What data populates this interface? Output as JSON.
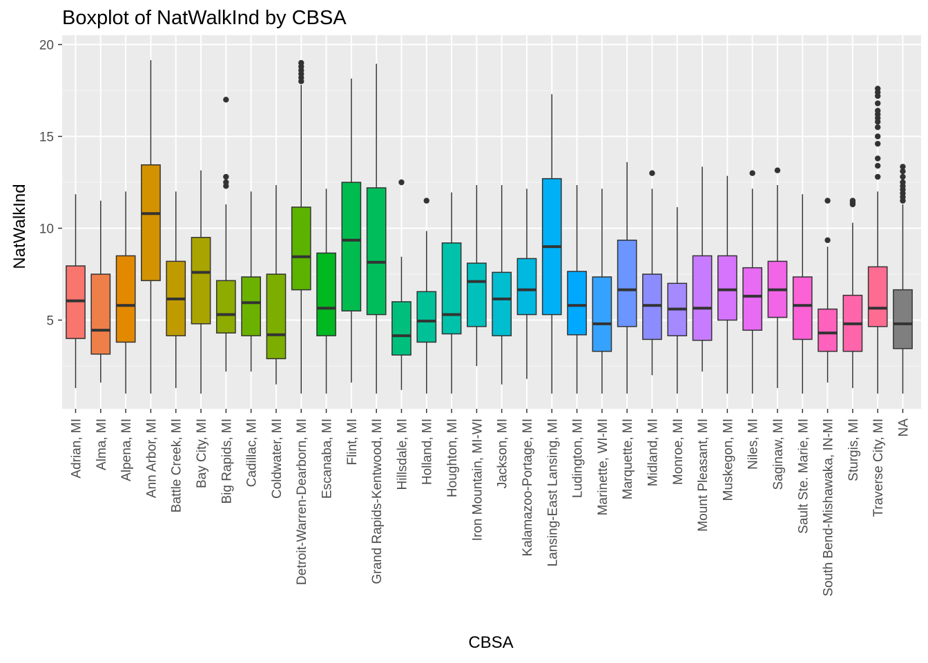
{
  "chart_data": {
    "type": "boxplot",
    "title": "Boxplot of NatWalkInd by CBSA",
    "xlabel": "CBSA",
    "ylabel": "NatWalkInd",
    "ylim": [
      0.25,
      20
    ],
    "yticks": [
      5,
      10,
      15,
      20
    ],
    "grid": true,
    "legend": "none",
    "categories": [
      {
        "name": "Adrian, MI",
        "min": 1.3,
        "q1": 4.0,
        "median": 6.05,
        "q3": 7.95,
        "max": 11.85,
        "outliers": [],
        "color": "#F8766D"
      },
      {
        "name": "Alma, MI",
        "min": 1.6,
        "q1": 3.15,
        "median": 4.45,
        "q3": 7.5,
        "max": 11.5,
        "outliers": [],
        "color": "#EF7F49"
      },
      {
        "name": "Alpena, MI",
        "min": 1.0,
        "q1": 3.8,
        "median": 5.8,
        "q3": 8.5,
        "max": 12.0,
        "outliers": [],
        "color": "#E38900"
      },
      {
        "name": "Ann Arbor, MI",
        "min": 1.0,
        "q1": 7.15,
        "median": 10.8,
        "q3": 13.45,
        "max": 19.15,
        "outliers": [],
        "color": "#D39200"
      },
      {
        "name": "Battle Creek, MI",
        "min": 1.3,
        "q1": 4.15,
        "median": 6.15,
        "q3": 8.2,
        "max": 12.0,
        "outliers": [],
        "color": "#C09B00"
      },
      {
        "name": "Bay City, MI",
        "min": 1.0,
        "q1": 4.8,
        "median": 7.6,
        "q3": 9.5,
        "max": 13.15,
        "outliers": [],
        "color": "#A9A400"
      },
      {
        "name": "Big Rapids, MI",
        "min": 2.2,
        "q1": 4.3,
        "median": 5.3,
        "q3": 7.15,
        "max": 11.3,
        "outliers": [
          12.3,
          12.5,
          12.8,
          17.0
        ],
        "color": "#8EAB00"
      },
      {
        "name": "Cadillac, MI",
        "min": 2.2,
        "q1": 4.15,
        "median": 5.95,
        "q3": 7.35,
        "max": 12.0,
        "outliers": [],
        "color": "#6BB100"
      },
      {
        "name": "Coldwater, MI",
        "min": 1.5,
        "q1": 2.9,
        "median": 4.2,
        "q3": 7.5,
        "max": 12.35,
        "outliers": [],
        "color": "#7CAE00"
      },
      {
        "name": "Detroit-Warren-Dearborn, MI",
        "min": 1.0,
        "q1": 6.65,
        "median": 8.45,
        "q3": 11.15,
        "max": 17.8,
        "outliers": [
          18.0,
          18.2,
          18.4,
          18.6,
          18.8,
          19.0
        ],
        "color": "#5BB300"
      },
      {
        "name": "Escanaba, MI",
        "min": 1.0,
        "q1": 4.15,
        "median": 5.65,
        "q3": 8.65,
        "max": 12.15,
        "outliers": [],
        "color": "#00B81F"
      },
      {
        "name": "Flint, MI",
        "min": 1.6,
        "q1": 5.5,
        "median": 9.35,
        "q3": 12.5,
        "max": 18.15,
        "outliers": [],
        "color": "#00BB4E"
      },
      {
        "name": "Grand Rapids-Kentwood, MI",
        "min": 1.0,
        "q1": 5.3,
        "median": 8.15,
        "q3": 12.2,
        "max": 18.95,
        "outliers": [],
        "color": "#00BD5C"
      },
      {
        "name": "Hillsdale, MI",
        "min": 1.2,
        "q1": 3.1,
        "median": 4.15,
        "q3": 6.0,
        "max": 8.45,
        "outliers": [
          12.5
        ],
        "color": "#00BF7D"
      },
      {
        "name": "Holland, MI",
        "min": 1.0,
        "q1": 3.8,
        "median": 4.95,
        "q3": 6.55,
        "max": 9.85,
        "outliers": [
          11.5
        ],
        "color": "#00C097"
      },
      {
        "name": "Houghton, MI",
        "min": 1.0,
        "q1": 4.25,
        "median": 5.3,
        "q3": 9.2,
        "max": 11.95,
        "outliers": [],
        "color": "#00C1AA"
      },
      {
        "name": "Iron Mountain, MI-WI",
        "min": 2.5,
        "q1": 4.65,
        "median": 7.1,
        "q3": 8.1,
        "max": 12.35,
        "outliers": [],
        "color": "#00C0BC"
      },
      {
        "name": "Jackson, MI",
        "min": 1.5,
        "q1": 4.15,
        "median": 6.15,
        "q3": 7.6,
        "max": 12.35,
        "outliers": [],
        "color": "#00BDD0"
      },
      {
        "name": "Kalamazoo-Portage, MI",
        "min": 1.8,
        "q1": 5.3,
        "median": 6.65,
        "q3": 8.35,
        "max": 12.15,
        "outliers": [],
        "color": "#00B8E0"
      },
      {
        "name": "Lansing-East Lansing, MI",
        "min": 1.0,
        "q1": 5.3,
        "median": 9.0,
        "q3": 12.7,
        "max": 17.3,
        "outliers": [],
        "color": "#00B0F6"
      },
      {
        "name": "Ludington, MI",
        "min": 1.0,
        "q1": 4.2,
        "median": 5.8,
        "q3": 7.65,
        "max": 12.35,
        "outliers": [],
        "color": "#00A9FF"
      },
      {
        "name": "Marinette, WI-MI",
        "min": 1.0,
        "q1": 3.3,
        "median": 4.8,
        "q3": 7.35,
        "max": 12.15,
        "outliers": [],
        "color": "#35A2FF"
      },
      {
        "name": "Marquette, MI",
        "min": 1.0,
        "q1": 4.65,
        "median": 6.65,
        "q3": 9.35,
        "max": 13.6,
        "outliers": [],
        "color": "#6B95FF"
      },
      {
        "name": "Midland, MI",
        "min": 2.0,
        "q1": 3.95,
        "median": 5.8,
        "q3": 7.5,
        "max": 12.15,
        "outliers": [
          13.0
        ],
        "color": "#8C8CFF"
      },
      {
        "name": "Monroe, MI",
        "min": 1.0,
        "q1": 4.15,
        "median": 5.6,
        "q3": 7.0,
        "max": 11.15,
        "outliers": [],
        "color": "#A58AFF"
      },
      {
        "name": "Mount Pleasant, MI",
        "min": 2.2,
        "q1": 3.9,
        "median": 5.65,
        "q3": 8.5,
        "max": 13.35,
        "outliers": [],
        "color": "#C77CFF"
      },
      {
        "name": "Muskegon, MI",
        "min": 1.0,
        "q1": 5.0,
        "median": 6.65,
        "q3": 8.5,
        "max": 12.85,
        "outliers": [],
        "color": "#D774FD"
      },
      {
        "name": "Niles, MI",
        "min": 1.0,
        "q1": 4.45,
        "median": 6.3,
        "q3": 7.85,
        "max": 12.15,
        "outliers": [
          13.0
        ],
        "color": "#E76BF3"
      },
      {
        "name": "Saginaw, MI",
        "min": 1.3,
        "q1": 5.15,
        "median": 6.65,
        "q3": 8.2,
        "max": 12.35,
        "outliers": [
          13.15
        ],
        "color": "#F265E7"
      },
      {
        "name": "Sault Ste. Marie, MI",
        "min": 1.0,
        "q1": 3.95,
        "median": 5.8,
        "q3": 7.35,
        "max": 11.85,
        "outliers": [],
        "color": "#FA62D6"
      },
      {
        "name": "South Bend-Mishawaka, IN-MI",
        "min": 1.6,
        "q1": 3.3,
        "median": 4.3,
        "q3": 5.6,
        "max": 9.0,
        "outliers": [
          9.35,
          11.5
        ],
        "color": "#FF62BC"
      },
      {
        "name": "Sturgis, MI",
        "min": 1.3,
        "q1": 3.3,
        "median": 4.8,
        "q3": 6.35,
        "max": 10.3,
        "outliers": [
          11.3,
          11.4,
          11.5
        ],
        "color": "#FF65AA"
      },
      {
        "name": "Traverse City, MI",
        "min": 1.0,
        "q1": 4.65,
        "median": 5.65,
        "q3": 7.9,
        "max": 12.0,
        "outliers": [
          12.8,
          13.4,
          13.8,
          14.6,
          15.0,
          15.5,
          15.8,
          16.0,
          16.2,
          16.4,
          16.8,
          17.2,
          17.4,
          17.6
        ],
        "color": "#FF6C91"
      },
      {
        "name": "NA",
        "min": 1.0,
        "q1": 3.45,
        "median": 4.8,
        "q3": 6.65,
        "max": 11.3,
        "outliers": [
          11.5,
          11.7,
          11.9,
          12.1,
          12.3,
          12.5,
          12.8,
          13.1,
          13.35
        ],
        "color": "#7F7F7F"
      }
    ]
  }
}
